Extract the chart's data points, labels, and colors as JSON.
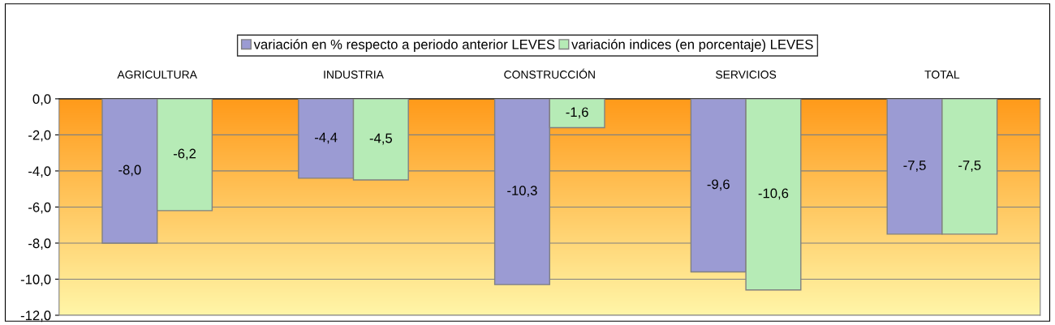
{
  "chart_data": {
    "type": "bar",
    "categories": [
      "AGRICULTURA",
      "INDUSTRIA",
      "CONSTRUCCIÓN",
      "SERVICIOS",
      "TOTAL"
    ],
    "series": [
      {
        "name": "variación en % respecto a periodo anterior LEVES",
        "color": "#9b9bd3",
        "values": [
          -8.0,
          -4.4,
          -10.3,
          -9.6,
          -7.5
        ],
        "value_labels": [
          "-8,0",
          "-4,4",
          "-10,3",
          "-9,6",
          "-7,5"
        ]
      },
      {
        "name": "variación indices (en porcentaje) LEVES",
        "color": "#b6ebb6",
        "values": [
          -6.2,
          -4.5,
          -1.6,
          -10.6,
          -7.5
        ],
        "value_labels": [
          "-6,2",
          "-4,5",
          "-1,6",
          "-10,6",
          "-7,5"
        ]
      }
    ],
    "ylim": [
      -12,
      0
    ],
    "yticks": [
      {
        "value": 0,
        "label": "0,0"
      },
      {
        "value": -2,
        "label": "-2,0"
      },
      {
        "value": -4,
        "label": "-4,0"
      },
      {
        "value": -6,
        "label": "-6,0"
      },
      {
        "value": -8,
        "label": "-8,0"
      },
      {
        "value": -10,
        "label": "-10,0"
      },
      {
        "value": -12,
        "label": "-12,0"
      }
    ],
    "grid": "y",
    "legend": "top"
  }
}
